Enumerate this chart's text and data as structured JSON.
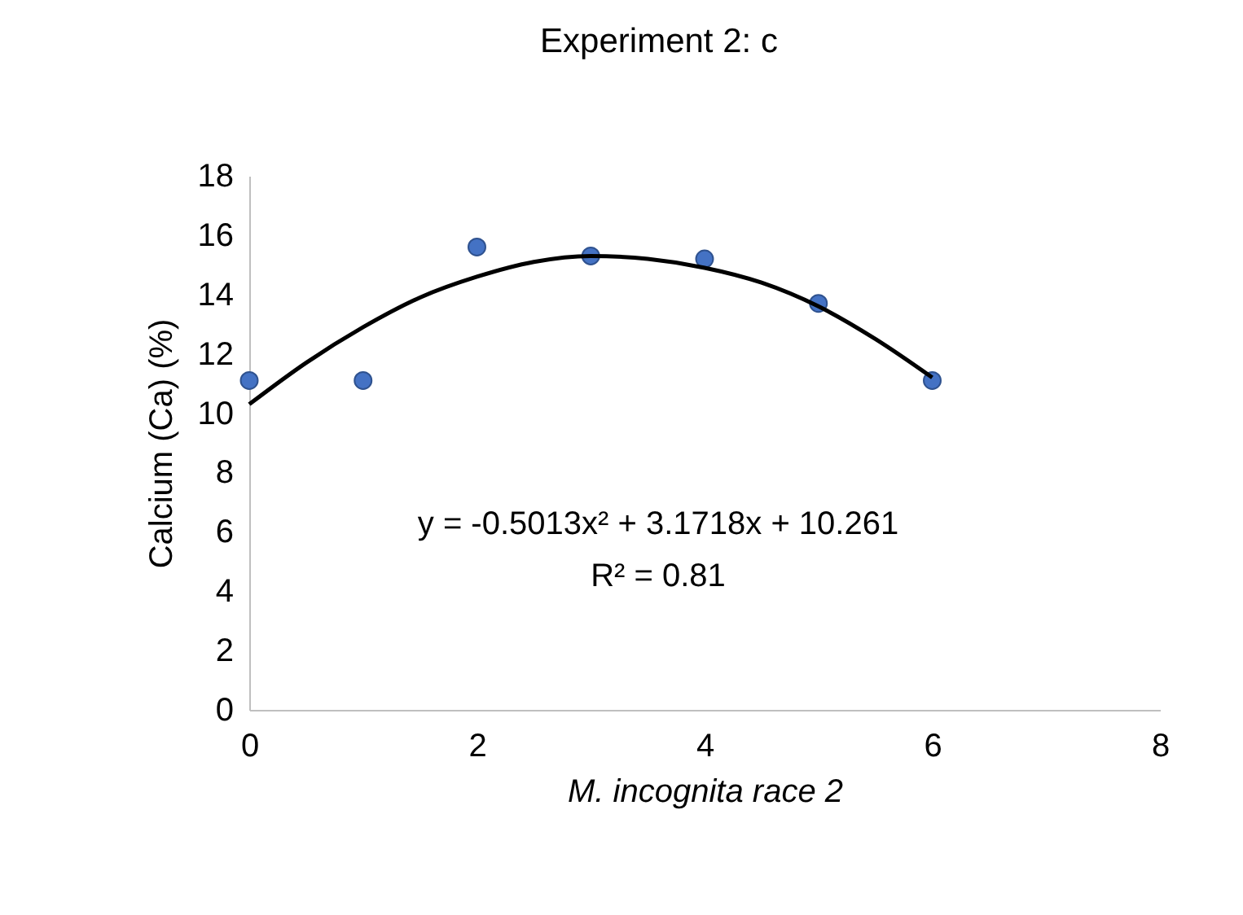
{
  "chart_data": {
    "type": "scatter",
    "title": "Experiment 2: c",
    "xlabel": "M. incognita race 2",
    "ylabel": "Calcium (Ca) (%)",
    "x": [
      0,
      1,
      2,
      3,
      4,
      5,
      6
    ],
    "series": [
      {
        "color": "#4472c4",
        "marker": "circle",
        "values": [
          11.1,
          11.1,
          15.6,
          15.3,
          15.2,
          13.7,
          11.1
        ]
      },
      {
        "type": "line",
        "color": "#000000",
        "marker": "none",
        "line_style": "solid",
        "x": [
          0,
          0.5,
          1,
          1.5,
          2,
          2.5,
          3,
          3.5,
          4,
          4.5,
          5,
          5.5,
          6
        ],
        "values": [
          10.3,
          11.7,
          12.9,
          13.9,
          14.6,
          15.1,
          15.3,
          15.2,
          14.9,
          14.4,
          13.6,
          12.5,
          11.2
        ]
      }
    ],
    "annotations": [
      "y = -0.5013x² + 3.1718x + 10.261",
      "R² = 0.81"
    ],
    "xlim": [
      0,
      8
    ],
    "xticks": [
      0,
      2,
      4,
      6,
      8
    ],
    "ylim": [
      0,
      18
    ],
    "yticks": [
      0,
      2,
      4,
      6,
      8,
      10,
      12,
      14,
      16,
      18
    ],
    "grid": false
  }
}
